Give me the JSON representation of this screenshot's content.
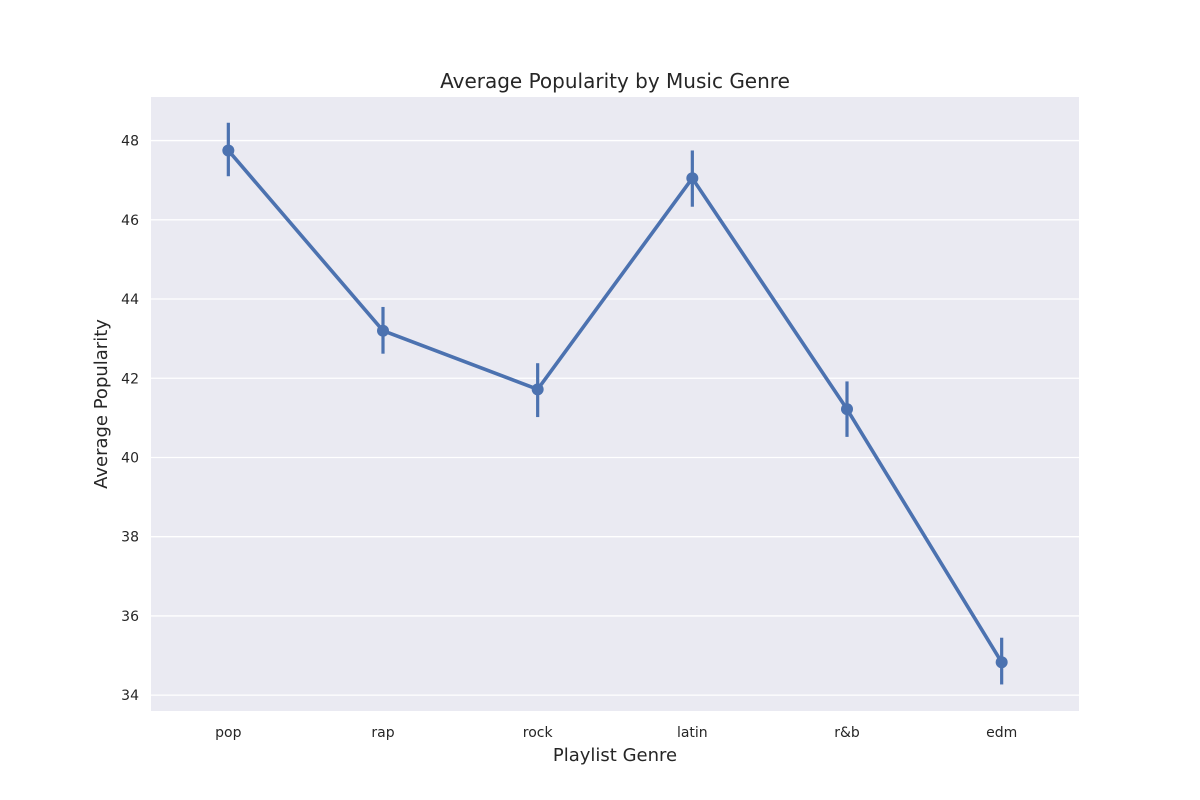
{
  "chart_data": {
    "type": "line",
    "title": "Average Popularity by Music Genre",
    "xlabel": "Playlist Genre",
    "ylabel": "Average Popularity",
    "categories": [
      "pop",
      "rap",
      "rock",
      "latin",
      "r&b",
      "edm"
    ],
    "series": [
      {
        "values": [
          47.75,
          43.2,
          41.72,
          47.05,
          41.22,
          34.83
        ],
        "ci_low": [
          47.1,
          42.62,
          41.02,
          46.33,
          40.52,
          34.27
        ],
        "ci_high": [
          48.45,
          43.8,
          42.38,
          47.75,
          41.92,
          35.45
        ],
        "color": "#4c72b0"
      }
    ],
    "y_ticks": [
      34,
      36,
      38,
      40,
      42,
      44,
      46,
      48
    ],
    "ylim": [
      33.6,
      49.1
    ],
    "grid": true,
    "background_color": "#eaeaf2",
    "grid_color": "#ffffff"
  }
}
